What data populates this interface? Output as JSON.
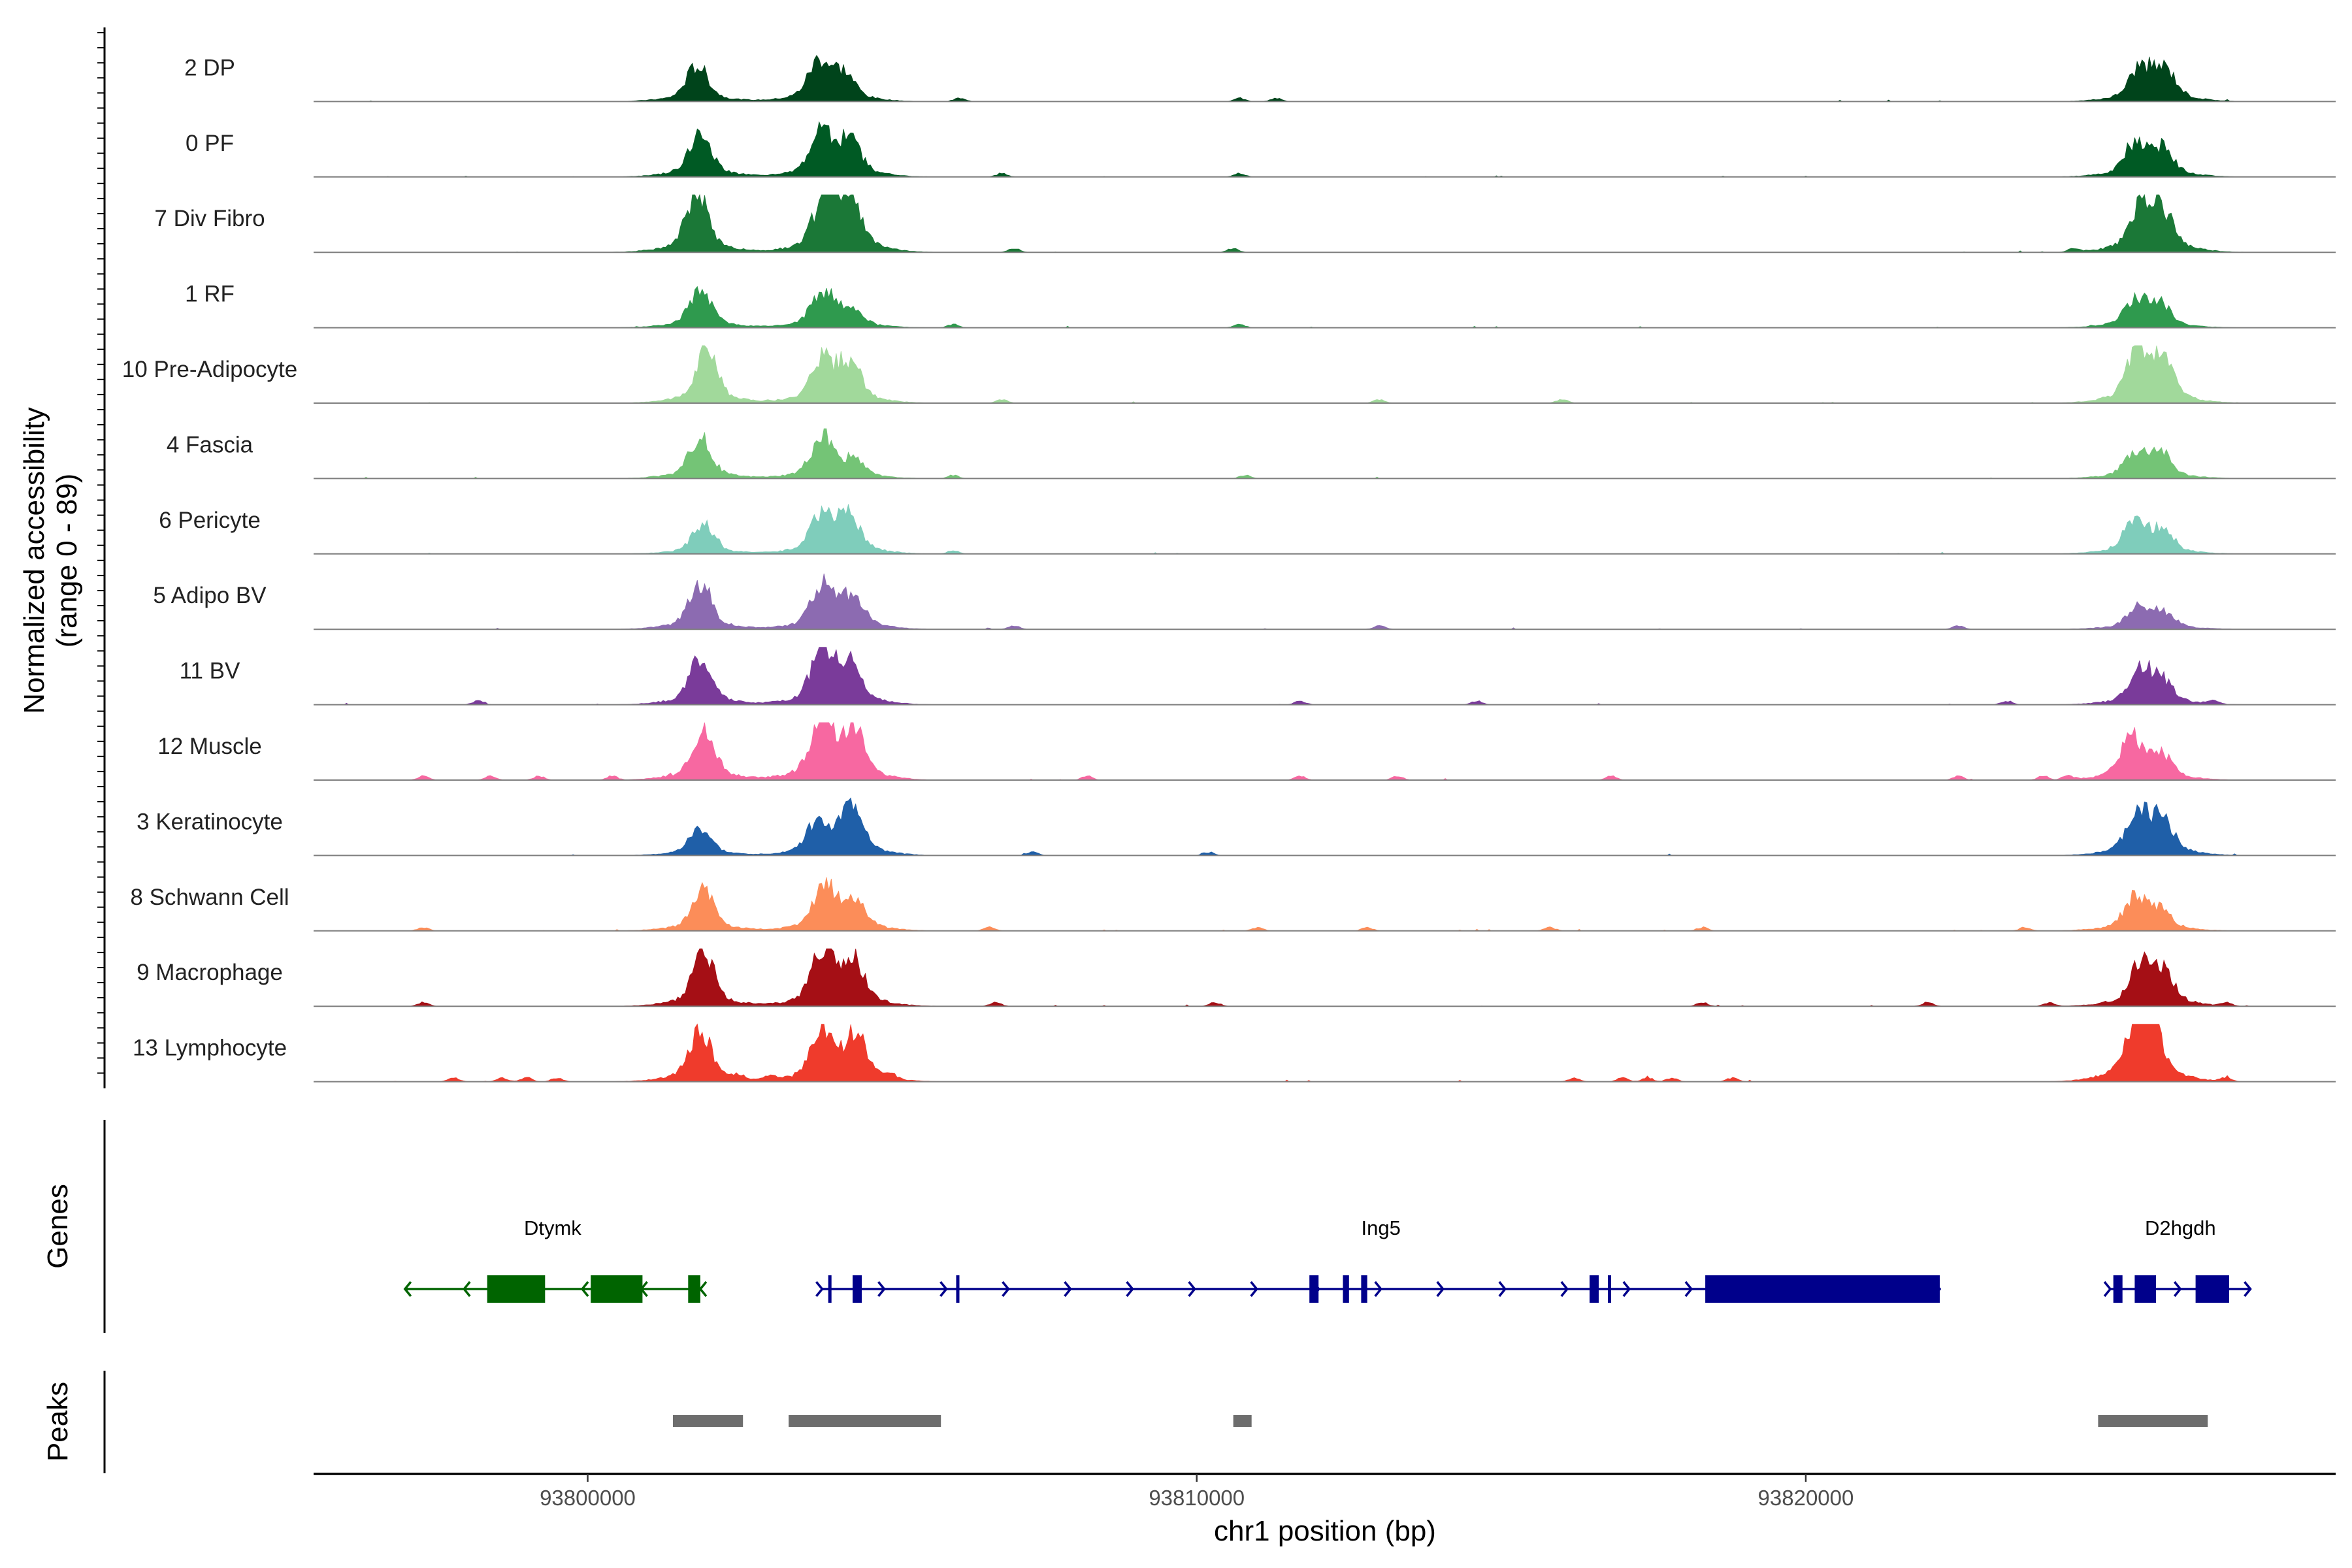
{
  "chart_data": {
    "type": "area",
    "title": "",
    "chromosome": "chr1",
    "xlabel": "chr1 position (bp)",
    "ylabel": "Normalized accessibility",
    "ylabel_range": "(range 0 - 89)",
    "xlim": [
      93795500,
      93828700
    ],
    "ylim": [
      0,
      89
    ],
    "x_ticks": [
      93800000,
      93810000,
      93820000
    ],
    "x_tick_labels": [
      "93800000",
      "93810000",
      "93820000"
    ],
    "coverage_tracks": [
      {
        "name": "2 DP",
        "color": "#00441b",
        "peaks": [
          [
            93801800,
            55
          ],
          [
            93803800,
            60
          ],
          [
            93804200,
            40
          ],
          [
            93825500,
            50
          ],
          [
            93825900,
            45
          ]
        ],
        "noise": [
          93810700,
          93806100,
          93811300
        ],
        "scale": 0.85
      },
      {
        "name": "0 PF",
        "color": "#005a24",
        "peaks": [
          [
            93801850,
            65
          ],
          [
            93803850,
            65
          ],
          [
            93804300,
            50
          ],
          [
            93825400,
            45
          ],
          [
            93825850,
            40
          ]
        ],
        "noise": [
          93810700,
          93806800
        ],
        "scale": 0.9
      },
      {
        "name": "7 Div Fibro",
        "color": "#1b7837",
        "peaks": [
          [
            93801800,
            78
          ],
          [
            93803900,
            72
          ],
          [
            93804300,
            70
          ],
          [
            93825500,
            55
          ],
          [
            93825850,
            50
          ]
        ],
        "noise": [
          93810600,
          93807000,
          93824400
        ],
        "scale": 1.0
      },
      {
        "name": "1 RF",
        "color": "#2f9a4e",
        "peaks": [
          [
            93801850,
            60
          ],
          [
            93803850,
            55
          ],
          [
            93804300,
            30
          ],
          [
            93825400,
            40
          ],
          [
            93825800,
            35
          ]
        ],
        "noise": [
          93810700,
          93806000
        ],
        "scale": 0.85
      },
      {
        "name": "10 Pre-Adipocyte",
        "color": "#a1d99b",
        "peaks": [
          [
            93801950,
            72
          ],
          [
            93803850,
            60
          ],
          [
            93804300,
            55
          ],
          [
            93825450,
            70
          ],
          [
            93825850,
            55
          ]
        ],
        "noise": [
          93806800,
          93813000,
          93816000
        ],
        "scale": 0.95
      },
      {
        "name": "4 Fascia",
        "color": "#74c476",
        "peaks": [
          [
            93801850,
            62
          ],
          [
            93803850,
            65
          ],
          [
            93804350,
            25
          ],
          [
            93825400,
            35
          ],
          [
            93825800,
            40
          ]
        ],
        "noise": [
          93806000,
          93810800
        ],
        "scale": 0.85
      },
      {
        "name": "6 Pericyte",
        "color": "#7fcdbb",
        "peaks": [
          [
            93801900,
            45
          ],
          [
            93803850,
            62
          ],
          [
            93804300,
            55
          ],
          [
            93825400,
            50
          ],
          [
            93825850,
            35
          ]
        ],
        "noise": [
          93806000
        ],
        "scale": 0.85
      },
      {
        "name": "5 Adipo BV",
        "color": "#8c6bb1",
        "peaks": [
          [
            93801850,
            68
          ],
          [
            93803850,
            62
          ],
          [
            93804350,
            48
          ],
          [
            93825450,
            30
          ],
          [
            93825850,
            25
          ]
        ],
        "noise": [
          93807000,
          93813000,
          93822500
        ],
        "scale": 0.9
      },
      {
        "name": "11 BV",
        "color": "#7a3b9a",
        "peaks": [
          [
            93801850,
            65
          ],
          [
            93803850,
            72
          ],
          [
            93804300,
            55
          ],
          [
            93825500,
            45
          ],
          [
            93825850,
            30
          ]
        ],
        "noise": [
          93798200,
          93811700,
          93814600,
          93823300,
          93826700
        ],
        "scale": 0.95
      },
      {
        "name": "12 Muscle",
        "color": "#f768a1",
        "peaks": [
          [
            93801900,
            70
          ],
          [
            93803850,
            85
          ],
          [
            93804350,
            65
          ],
          [
            93825350,
            55
          ],
          [
            93825850,
            30
          ]
        ],
        "noise": [
          93797300,
          93798400,
          93799200,
          93800400,
          93808200,
          93811700,
          93813300,
          93816800,
          93822500,
          93823900,
          93824300
        ],
        "scale": 1.0
      },
      {
        "name": "3 Keratinocyte",
        "color": "#1f5fa8",
        "peaks": [
          [
            93801850,
            40
          ],
          [
            93803800,
            55
          ],
          [
            93804350,
            75
          ],
          [
            93825450,
            60
          ],
          [
            93825850,
            55
          ]
        ],
        "noise": [
          93810200,
          93807300
        ],
        "scale": 0.85
      },
      {
        "name": "8 Schwann Cell",
        "color": "#fc8d59",
        "peaks": [
          [
            93801900,
            60
          ],
          [
            93803900,
            65
          ],
          [
            93804400,
            40
          ],
          [
            93825400,
            45
          ],
          [
            93825800,
            30
          ]
        ],
        "noise": [
          93797300,
          93806600,
          93811000,
          93812800,
          93815800,
          93818300,
          93823600
        ],
        "scale": 0.9
      },
      {
        "name": "9 Macrophage",
        "color": "#a50f15",
        "peaks": [
          [
            93801900,
            75
          ],
          [
            93803850,
            70
          ],
          [
            93804350,
            65
          ],
          [
            93825500,
            55
          ],
          [
            93825850,
            45
          ]
        ],
        "noise": [
          93797300,
          93806700,
          93810300,
          93818300,
          93822000,
          93824000,
          93826900
        ],
        "scale": 0.95
      },
      {
        "name": "13 Lymphocyte",
        "color": "#ef3b2c",
        "peaks": [
          [
            93801850,
            68
          ],
          [
            93803850,
            66
          ],
          [
            93804400,
            60
          ],
          [
            93825650,
            85
          ],
          [
            93825350,
            50
          ]
        ],
        "noise": [
          93797800,
          93798600,
          93799000,
          93799500,
          93802500,
          93803000,
          93805000,
          93816200,
          93817000,
          93817400,
          93817800,
          93818800,
          93826900
        ],
        "scale": 1.0
      }
    ],
    "genes": [
      {
        "name": "Dtymk",
        "strand": "-",
        "color": "#006400",
        "start": 93797000,
        "end": 93801850,
        "exons": [
          [
            93798350,
            93799300
          ],
          [
            93800050,
            93800900
          ],
          [
            93801650,
            93801850
          ]
        ]
      },
      {
        "name": "Ing5",
        "strand": "+",
        "color": "#00008b",
        "start": 93803850,
        "end": 93822200,
        "exons": [
          [
            93803950,
            93804000
          ],
          [
            93804350,
            93804500
          ],
          [
            93806050,
            93806100
          ],
          [
            93811850,
            93812000
          ],
          [
            93812400,
            93812500
          ],
          [
            93812700,
            93812800
          ],
          [
            93816450,
            93816600
          ],
          [
            93816750,
            93816800
          ],
          [
            93818350,
            93822200
          ]
        ]
      },
      {
        "name": "D2hgdh",
        "strand": "+",
        "color": "#00008b",
        "start": 93825000,
        "end": 93827300,
        "exons": [
          [
            93825050,
            93825200
          ],
          [
            93825400,
            93825750
          ],
          [
            93826400,
            93826950
          ]
        ]
      }
    ],
    "peaks_track": [
      [
        93801400,
        93802550
      ],
      [
        93803300,
        93805800
      ],
      [
        93810600,
        93810900
      ],
      [
        93824800,
        93826600
      ]
    ],
    "panels": {
      "genes_title": "Genes",
      "peaks_title": "Peaks"
    }
  }
}
